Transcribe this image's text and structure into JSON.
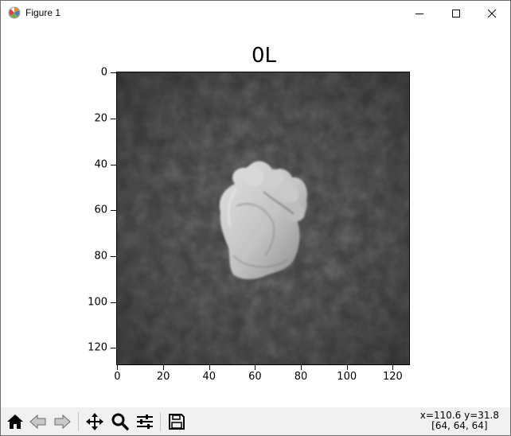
{
  "window": {
    "title": "Figure 1",
    "icon": "matplotlib-icon"
  },
  "plot": {
    "title": "0L",
    "image": "grayscale photo of a closed fist (hand sign) on a dark textured background",
    "y_ticks": [
      "0",
      "20",
      "40",
      "60",
      "80",
      "100",
      "120"
    ],
    "x_ticks": [
      "0",
      "20",
      "40",
      "60",
      "80",
      "100",
      "120"
    ],
    "image_size": [
      128,
      128
    ]
  },
  "toolbar": {
    "buttons": [
      "home-icon",
      "back-arrow-icon",
      "forward-arrow-icon",
      "pan-icon",
      "zoom-icon",
      "configure-subplots-icon",
      "save-icon"
    ]
  },
  "status": {
    "coords": "x=110.6 y=31.8",
    "pixel": "[64, 64, 64]"
  }
}
